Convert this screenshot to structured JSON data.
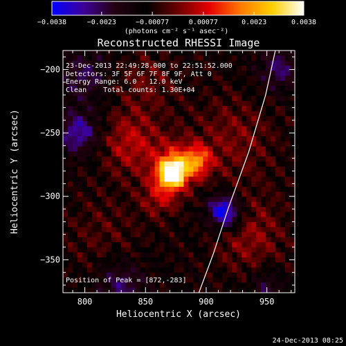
{
  "chart_data": {
    "type": "heatmap",
    "title": "Reconstructed RHESSI Image",
    "xlabel": "Heliocentric X (arcsec)",
    "ylabel": "Heliocentric Y (arcsec)",
    "xlim": [
      782,
      973
    ],
    "ylim": [
      -376,
      -185
    ],
    "x_ticks": [
      800,
      850,
      900,
      950
    ],
    "y_ticks": [
      -200,
      -250,
      -300,
      -350
    ],
    "y_tick_labels": [
      "−200",
      "−250",
      "−300",
      "−350"
    ],
    "colorbar": {
      "range": [
        -0.0038,
        0.0038
      ],
      "ticks": [
        -0.0038,
        -0.0023,
        -0.00077,
        0.00077,
        0.0023,
        0.0038
      ],
      "tick_labels": [
        "−0.0038",
        "−0.0023",
        "−0.00077",
        "0.00077",
        "0.0023",
        "0.0038"
      ],
      "units": "(photons cm⁻² s⁻¹ asec⁻²)",
      "colors": [
        "#0000ff",
        "#3d0099",
        "#24000f",
        "#000000",
        "#6b0000",
        "#e60000",
        "#ff7a00",
        "#ffd000",
        "#ffffff"
      ]
    },
    "annotations": {
      "time_range": "23-Dec-2013 22:49:28.000 to 22:51:52.000",
      "detectors": "Detectors: 3F 5F 6F 7F 8F 9F, Att 0",
      "energy": "Energy Range: 6.0 - 12.0 keV",
      "clean": "Clean    Total counts: 1.30E+04",
      "peak": "Position of Peak = [872,-283]"
    },
    "peak": {
      "x": 872,
      "y": -283
    },
    "sources": [
      {
        "x": 872,
        "y": -282,
        "sigma": 7,
        "amp": 1.25
      },
      {
        "x": 875,
        "y": -276,
        "sigma": 13,
        "amp": 0.55
      },
      {
        "x": 893,
        "y": -272,
        "sigma": 8,
        "amp": 0.55
      },
      {
        "x": 862,
        "y": -300,
        "sigma": 11,
        "amp": 0.35
      },
      {
        "x": 838,
        "y": -258,
        "sigma": 18,
        "amp": 0.38
      },
      {
        "x": 850,
        "y": -210,
        "sigma": 18,
        "amp": 0.2
      },
      {
        "x": 935,
        "y": -330,
        "sigma": 22,
        "amp": 0.3
      },
      {
        "x": 922,
        "y": -255,
        "sigma": 25,
        "amp": 0.25
      },
      {
        "x": 815,
        "y": -330,
        "sigma": 25,
        "amp": 0.15
      }
    ],
    "negative_regions": [
      {
        "x": 915,
        "y": -312,
        "sigma": 10,
        "amp": -0.85
      },
      {
        "x": 795,
        "y": -250,
        "sigma": 12,
        "amp": -0.55
      },
      {
        "x": 800,
        "y": -205,
        "sigma": 14,
        "amp": -0.35
      },
      {
        "x": 830,
        "y": -370,
        "sigma": 14,
        "amp": -0.4
      },
      {
        "x": 960,
        "y": -200,
        "sigma": 12,
        "amp": -0.4
      },
      {
        "x": 950,
        "y": -372,
        "sigma": 10,
        "amp": -0.3
      }
    ],
    "limb_line": [
      [
        957,
        -185
      ],
      [
        949,
        -220
      ],
      [
        935,
        -265
      ],
      [
        918,
        -310
      ],
      [
        906,
        -345
      ],
      [
        894,
        -376
      ]
    ]
  },
  "footer": {
    "timestamp": "24-Dec-2013 08:25"
  }
}
